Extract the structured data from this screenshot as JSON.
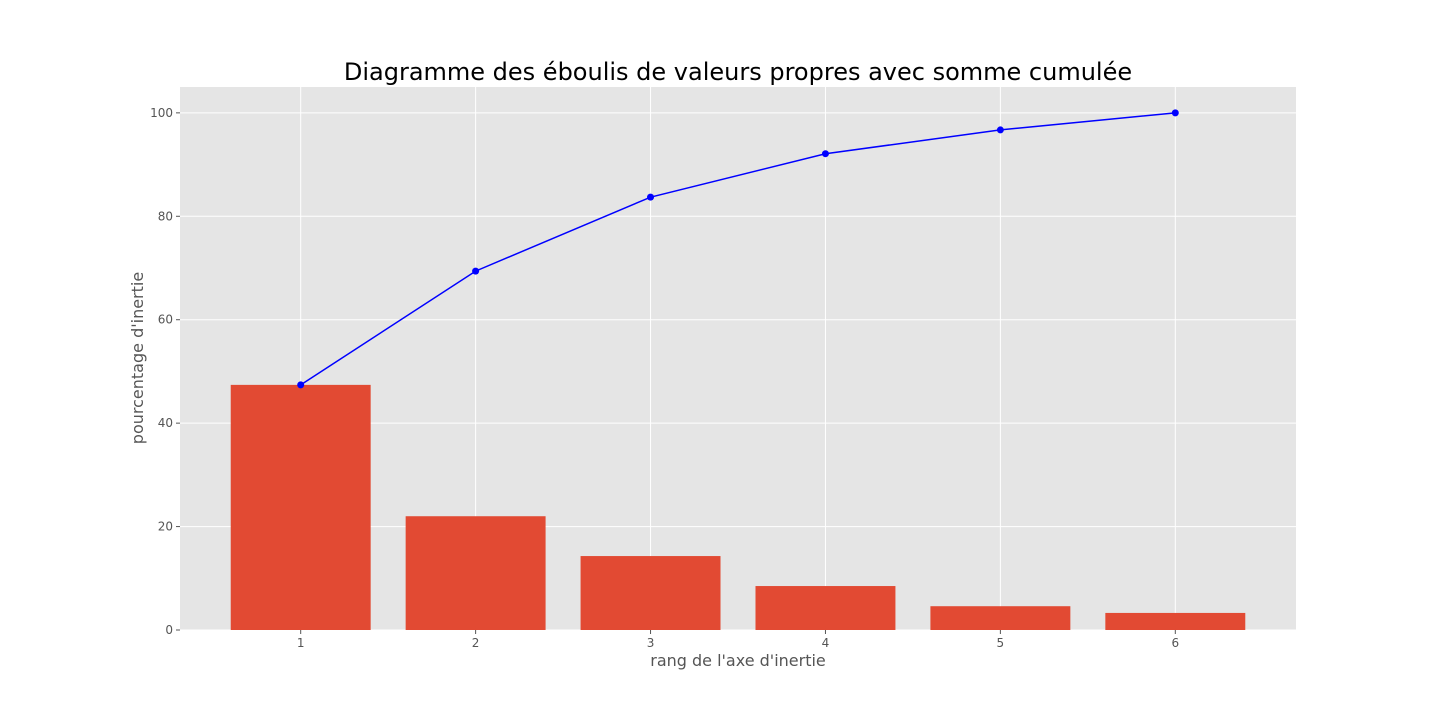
{
  "chart_data": {
    "type": "bar",
    "title": "Diagramme des éboulis de valeurs propres avec somme cumulée",
    "xlabel": "rang de l'axe d'inertie",
    "ylabel": "pourcentage d'inertie",
    "categories": [
      "1",
      "2",
      "3",
      "4",
      "5",
      "6"
    ],
    "x": [
      1,
      2,
      3,
      4,
      5,
      6
    ],
    "series": [
      {
        "type": "bar",
        "values": [
          47.4,
          22.0,
          14.3,
          8.5,
          4.6,
          3.3
        ]
      },
      {
        "type": "line",
        "values": [
          47.4,
          69.4,
          83.7,
          92.1,
          96.7,
          100.0
        ]
      }
    ],
    "ylim": [
      0,
      105
    ],
    "xlim": [
      0.31,
      6.69
    ],
    "yticks": [
      0,
      20,
      40,
      60,
      80,
      100
    ],
    "grid": true,
    "colors": {
      "bar": "#E24A33",
      "line": "#0000FF",
      "plot_background": "#E5E5E5",
      "grid": "#FFFFFF"
    }
  }
}
